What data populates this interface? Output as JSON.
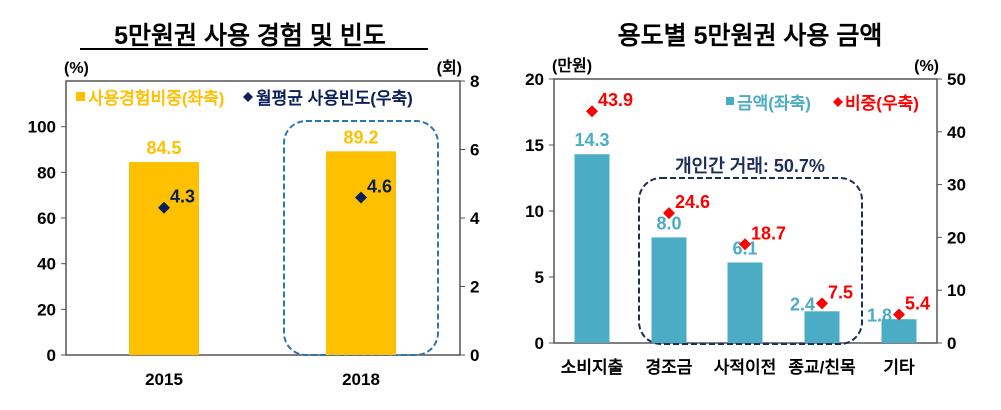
{
  "chart_data": [
    {
      "type": "bar",
      "title": "5만원권 사용 경험 및 빈도",
      "categories": [
        "2015",
        "2018"
      ],
      "ylabel_left_unit": "(%)",
      "ylabel_right_unit": "(회)",
      "ylim_left": [
        0,
        120
      ],
      "yticks_left": [
        0,
        20,
        40,
        60,
        80,
        100
      ],
      "ylim_right": [
        0,
        8
      ],
      "yticks_right": [
        0,
        2,
        4,
        6,
        8
      ],
      "grid": false,
      "legend_placement": "top",
      "series": [
        {
          "name": "사용경험비중(좌축)",
          "type": "bar",
          "axis": "left",
          "values": [
            84.5,
            89.2
          ],
          "labels": [
            "84.5",
            "89.2"
          ],
          "color": "#FFC000"
        },
        {
          "name": "월평균 사용빈도(우축)",
          "type": "scatter",
          "marker": "diamond",
          "axis": "right",
          "values": [
            4.3,
            4.6
          ],
          "labels": [
            "4.3",
            "4.6"
          ],
          "color": "#0B1F5B"
        }
      ],
      "highlight": {
        "category": "2018",
        "style": "dashed-rounded-box",
        "color": "#2E75B6"
      }
    },
    {
      "type": "bar",
      "title": "용도별 5만원권 사용 금액",
      "categories": [
        "소비지출",
        "경조금",
        "사적이전",
        "종교/친목",
        "기타"
      ],
      "ylabel_left_unit": "(만원)",
      "ylabel_right_unit": "(%)",
      "ylim_left": [
        0,
        20
      ],
      "yticks_left": [
        0,
        5,
        10,
        15,
        20
      ],
      "ylim_right": [
        0,
        50
      ],
      "yticks_right": [
        0,
        10,
        20,
        30,
        40,
        50
      ],
      "grid": false,
      "legend_placement": "top-right",
      "series": [
        {
          "name": "금액(좌축)",
          "type": "bar",
          "axis": "left",
          "values": [
            14.3,
            8.0,
            6.1,
            2.4,
            1.8
          ],
          "labels": [
            "14.3",
            "8.0",
            "6.1",
            "2.4",
            "1.8"
          ],
          "color": "#4BACC6"
        },
        {
          "name": "비중(우축)",
          "type": "scatter",
          "marker": "diamond",
          "axis": "right",
          "values": [
            43.9,
            24.6,
            18.7,
            7.5,
            5.4
          ],
          "labels": [
            "43.9",
            "24.6",
            "18.7",
            "7.5",
            "5.4"
          ],
          "color": "#FF0000"
        }
      ],
      "annotation": {
        "text": "개인간 거래:  50.7%",
        "categories": [
          "경조금",
          "사적이전",
          "종교/친목"
        ],
        "style": "dashed-rounded-box",
        "color": "#1F2D5A"
      }
    }
  ]
}
